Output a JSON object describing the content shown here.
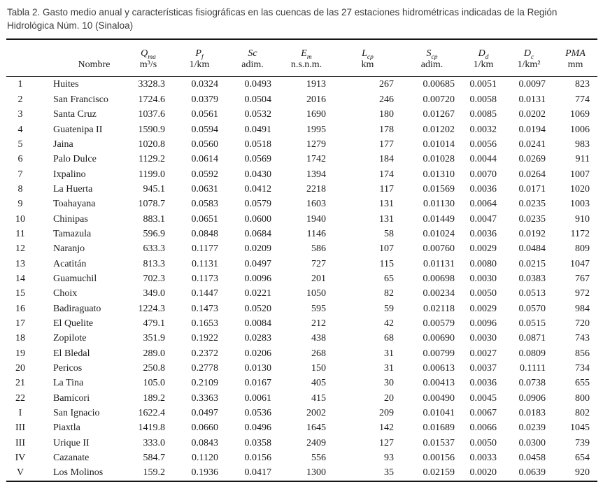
{
  "title": "Tabla 2. Gasto medio anual y características fisiográficas en las cuencas de las 27 estaciones hidrométricas indicadas de la Región Hidrológica Núm. 10 (Sinaloa)",
  "table": {
    "row_header_label": "Nombre",
    "columns": [
      {
        "id": "qma",
        "symbol": "Q",
        "subscript": "ma",
        "unit": "m³/s"
      },
      {
        "id": "pf",
        "symbol": "P",
        "subscript": "f",
        "unit": "1/km"
      },
      {
        "id": "sc",
        "symbol": "Sc",
        "subscript": "",
        "unit": "adim."
      },
      {
        "id": "em",
        "symbol": "E",
        "subscript": "m",
        "unit": "n.s.n.m."
      },
      {
        "id": "lcp",
        "symbol": "L",
        "subscript": "cp",
        "unit": "km"
      },
      {
        "id": "scp",
        "symbol": "S",
        "subscript": "cp",
        "unit": "adim."
      },
      {
        "id": "dd",
        "symbol": "D",
        "subscript": "d",
        "unit": "1/km"
      },
      {
        "id": "dc",
        "symbol": "D",
        "subscript": "c",
        "unit": "1/km²"
      },
      {
        "id": "pma",
        "symbol": "PMA",
        "subscript": "",
        "unit": "mm"
      }
    ],
    "rows": [
      {
        "num": "1",
        "name": "Huites",
        "values": [
          "3328.3",
          "0.0324",
          "0.0493",
          "1913",
          "267",
          "0.00685",
          "0.0051",
          "0.0097",
          "823"
        ]
      },
      {
        "num": "2",
        "name": "San Francisco",
        "values": [
          "1724.6",
          "0.0379",
          "0.0504",
          "2016",
          "246",
          "0.00720",
          "0.0058",
          "0.0131",
          "774"
        ]
      },
      {
        "num": "3",
        "name": "Santa Cruz",
        "values": [
          "1037.6",
          "0.0561",
          "0.0532",
          "1690",
          "180",
          "0.01267",
          "0.0085",
          "0.0202",
          "1069"
        ]
      },
      {
        "num": "4",
        "name": "Guatenipa II",
        "values": [
          "1590.9",
          "0.0594",
          "0.0491",
          "1995",
          "178",
          "0.01202",
          "0.0032",
          "0.0194",
          "1006"
        ]
      },
      {
        "num": "5",
        "name": "Jaina",
        "values": [
          "1020.8",
          "0.0560",
          "0.0518",
          "1279",
          "177",
          "0.01014",
          "0.0056",
          "0.0241",
          "983"
        ]
      },
      {
        "num": "6",
        "name": "Palo Dulce",
        "values": [
          "1129.2",
          "0.0614",
          "0.0569",
          "1742",
          "184",
          "0.01028",
          "0.0044",
          "0.0269",
          "911"
        ]
      },
      {
        "num": "7",
        "name": "Ixpalino",
        "values": [
          "1199.0",
          "0.0592",
          "0.0430",
          "1394",
          "174",
          "0.01310",
          "0.0070",
          "0.0264",
          "1007"
        ]
      },
      {
        "num": "8",
        "name": "La Huerta",
        "values": [
          "945.1",
          "0.0631",
          "0.0412",
          "2218",
          "117",
          "0.01569",
          "0.0036",
          "0.0171",
          "1020"
        ]
      },
      {
        "num": "9",
        "name": "Toahayana",
        "values": [
          "1078.7",
          "0.0583",
          "0.0579",
          "1603",
          "131",
          "0.01130",
          "0.0064",
          "0.0235",
          "1003"
        ]
      },
      {
        "num": "10",
        "name": "Chinipas",
        "values": [
          "883.1",
          "0.0651",
          "0.0600",
          "1940",
          "131",
          "0.01449",
          "0.0047",
          "0.0235",
          "910"
        ]
      },
      {
        "num": "11",
        "name": "Tamazula",
        "values": [
          "596.9",
          "0.0848",
          "0.0684",
          "1146",
          "58",
          "0.01024",
          "0.0036",
          "0.0192",
          "1172"
        ]
      },
      {
        "num": "12",
        "name": "Naranjo",
        "values": [
          "633.3",
          "0.1177",
          "0.0209",
          "586",
          "107",
          "0.00760",
          "0.0029",
          "0.0484",
          "809"
        ]
      },
      {
        "num": "13",
        "name": "Acatitán",
        "values": [
          "813.3",
          "0.1131",
          "0.0497",
          "727",
          "115",
          "0.01131",
          "0.0080",
          "0.0215",
          "1047"
        ]
      },
      {
        "num": "14",
        "name": "Guamuchil",
        "values": [
          "702.3",
          "0.1173",
          "0.0096",
          "201",
          "65",
          "0.00698",
          "0.0030",
          "0.0383",
          "767"
        ]
      },
      {
        "num": "15",
        "name": "Choix",
        "values": [
          "349.0",
          "0.1447",
          "0.0221",
          "1050",
          "82",
          "0.00234",
          "0.0050",
          "0.0513",
          "972"
        ]
      },
      {
        "num": "16",
        "name": "Badiraguato",
        "values": [
          "1224.3",
          "0.1473",
          "0.0520",
          "595",
          "59",
          "0.02118",
          "0.0029",
          "0.0570",
          "984"
        ]
      },
      {
        "num": "17",
        "name": "El Quelite",
        "values": [
          "479.1",
          "0.1653",
          "0.0084",
          "212",
          "42",
          "0.00579",
          "0.0096",
          "0.0515",
          "720"
        ]
      },
      {
        "num": "18",
        "name": "Zopilote",
        "values": [
          "351.9",
          "0.1922",
          "0.0283",
          "438",
          "68",
          "0.00690",
          "0.0030",
          "0.0871",
          "743"
        ]
      },
      {
        "num": "19",
        "name": "El Bledal",
        "values": [
          "289.0",
          "0.2372",
          "0.0206",
          "268",
          "31",
          "0.00799",
          "0.0027",
          "0.0809",
          "856"
        ]
      },
      {
        "num": "20",
        "name": "Pericos",
        "values": [
          "250.8",
          "0.2778",
          "0.0130",
          "150",
          "31",
          "0.00613",
          "0.0037",
          "0.1111",
          "734"
        ]
      },
      {
        "num": "21",
        "name": "La Tina",
        "values": [
          "105.0",
          "0.2109",
          "0.0167",
          "405",
          "30",
          "0.00413",
          "0.0036",
          "0.0738",
          "655"
        ]
      },
      {
        "num": "22",
        "name": "Bamícori",
        "values": [
          "189.2",
          "0.3363",
          "0.0061",
          "415",
          "20",
          "0.00490",
          "0.0045",
          "0.0906",
          "800"
        ]
      },
      {
        "num": "I",
        "name": "San Ignacio",
        "values": [
          "1622.4",
          "0.0497",
          "0.0536",
          "2002",
          "209",
          "0.01041",
          "0.0067",
          "0.0183",
          "802"
        ]
      },
      {
        "num": "III",
        "name": "Piaxtla",
        "values": [
          "1419.8",
          "0.0660",
          "0.0496",
          "1645",
          "142",
          "0.01689",
          "0.0066",
          "0.0239",
          "1045"
        ]
      },
      {
        "num": "III",
        "name": "Urique II",
        "values": [
          "333.0",
          "0.0843",
          "0.0358",
          "2409",
          "127",
          "0.01537",
          "0.0050",
          "0.0300",
          "739"
        ]
      },
      {
        "num": "IV",
        "name": "Cazanate",
        "values": [
          "584.7",
          "0.1120",
          "0.0156",
          "556",
          "93",
          "0.00156",
          "0.0033",
          "0.0458",
          "654"
        ]
      },
      {
        "num": "V",
        "name": "Los Molinos",
        "values": [
          "159.2",
          "0.1936",
          "0.0417",
          "1300",
          "35",
          "0.02159",
          "0.0020",
          "0.0639",
          "920"
        ]
      }
    ]
  }
}
